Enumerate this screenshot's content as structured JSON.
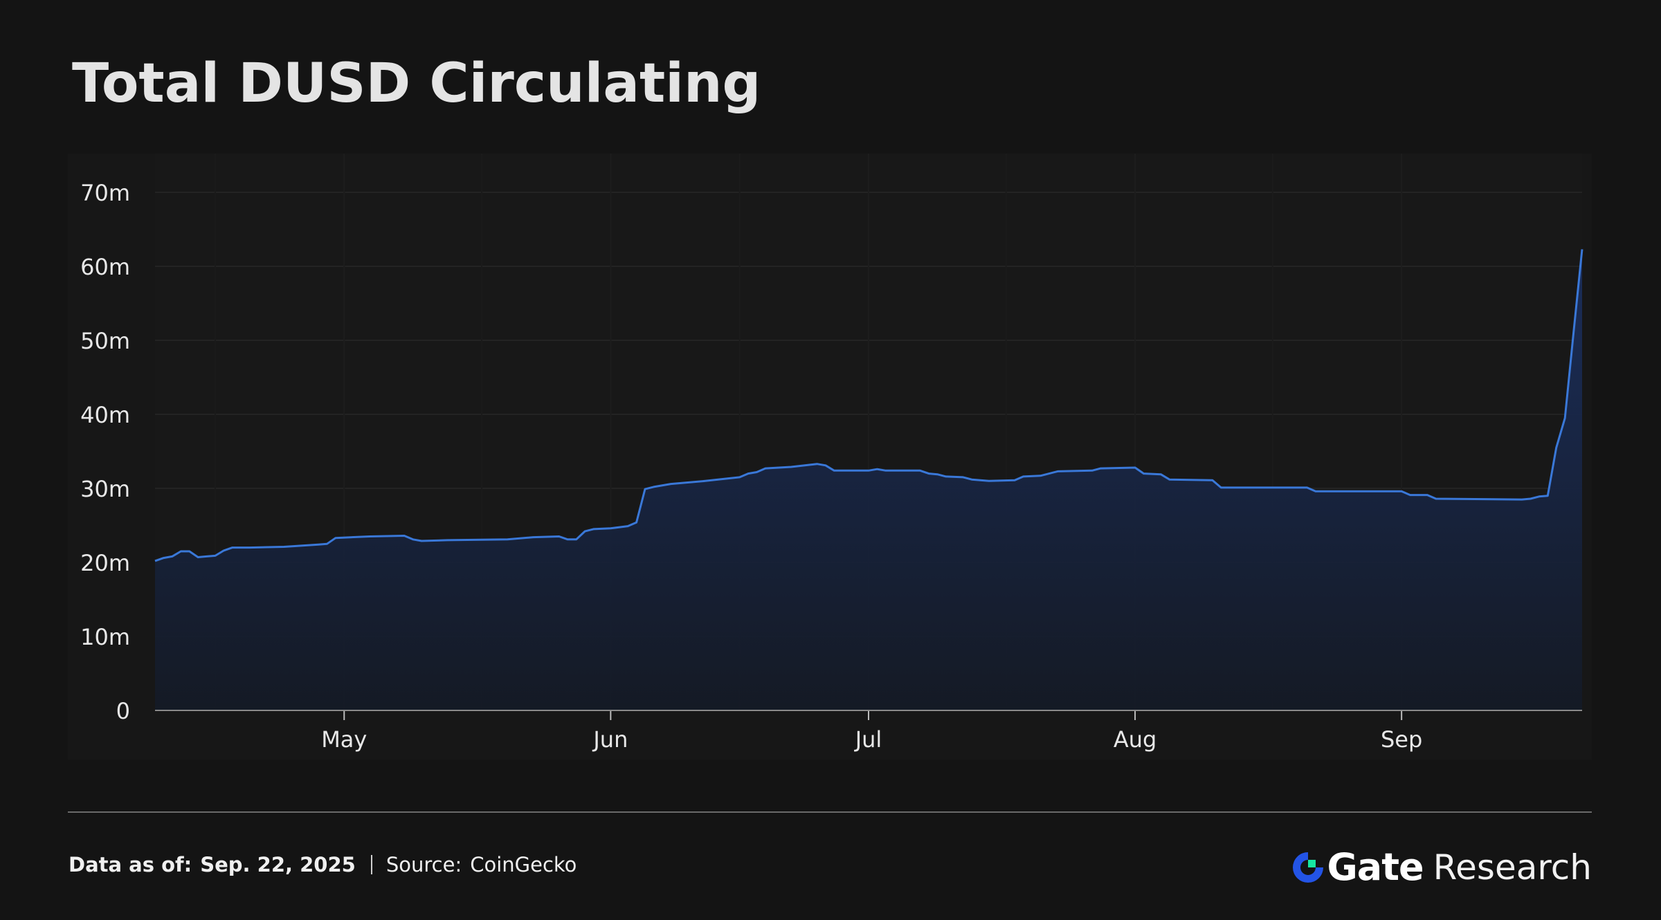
{
  "chart_data": {
    "type": "area",
    "title": "Total DUSD Circulating",
    "xlabel": "",
    "ylabel": "",
    "ylim": [
      0,
      70000000
    ],
    "yticks": [
      {
        "value": 0,
        "label": "0"
      },
      {
        "value": 10000000,
        "label": "10m"
      },
      {
        "value": 20000000,
        "label": "20m"
      },
      {
        "value": 30000000,
        "label": "30m"
      },
      {
        "value": 40000000,
        "label": "40m"
      },
      {
        "value": 50000000,
        "label": "50m"
      },
      {
        "value": 60000000,
        "label": "60m"
      },
      {
        "value": 70000000,
        "label": "70m"
      }
    ],
    "xlim": [
      "2025-04-09",
      "2025-09-22"
    ],
    "xticks": [
      {
        "date": "2025-05-01",
        "label": "May"
      },
      {
        "date": "2025-06-01",
        "label": "Jun"
      },
      {
        "date": "2025-07-01",
        "label": "Jul"
      },
      {
        "date": "2025-08-01",
        "label": "Aug"
      },
      {
        "date": "2025-09-01",
        "label": "Sep"
      }
    ],
    "grid": true,
    "series": [
      {
        "color": "#3a78d8",
        "points": [
          [
            "2025-04-09",
            20.2
          ],
          [
            "2025-04-10",
            20.6
          ],
          [
            "2025-04-11",
            20.8
          ],
          [
            "2025-04-12",
            21.5
          ],
          [
            "2025-04-13",
            21.5
          ],
          [
            "2025-04-14",
            20.7
          ],
          [
            "2025-04-15",
            20.8
          ],
          [
            "2025-04-16",
            20.9
          ],
          [
            "2025-04-17",
            21.6
          ],
          [
            "2025-04-18",
            22.0
          ],
          [
            "2025-04-20",
            22.0
          ],
          [
            "2025-04-24",
            22.1
          ],
          [
            "2025-04-28",
            22.4
          ],
          [
            "2025-04-29",
            22.5
          ],
          [
            "2025-04-30",
            23.3
          ],
          [
            "2025-05-04",
            23.5
          ],
          [
            "2025-05-08",
            23.6
          ],
          [
            "2025-05-09",
            23.1
          ],
          [
            "2025-05-10",
            22.9
          ],
          [
            "2025-05-13",
            23.0
          ],
          [
            "2025-05-20",
            23.1
          ],
          [
            "2025-05-23",
            23.4
          ],
          [
            "2025-05-26",
            23.5
          ],
          [
            "2025-05-27",
            23.1
          ],
          [
            "2025-05-28",
            23.1
          ],
          [
            "2025-05-29",
            24.2
          ],
          [
            "2025-05-30",
            24.5
          ],
          [
            "2025-06-01",
            24.6
          ],
          [
            "2025-06-03",
            24.9
          ],
          [
            "2025-06-04",
            25.4
          ],
          [
            "2025-06-05",
            29.9
          ],
          [
            "2025-06-06",
            30.2
          ],
          [
            "2025-06-08",
            30.6
          ],
          [
            "2025-06-12",
            31.0
          ],
          [
            "2025-06-16",
            31.5
          ],
          [
            "2025-06-17",
            32.0
          ],
          [
            "2025-06-18",
            32.2
          ],
          [
            "2025-06-19",
            32.7
          ],
          [
            "2025-06-22",
            32.9
          ],
          [
            "2025-06-25",
            33.3
          ],
          [
            "2025-06-26",
            33.1
          ],
          [
            "2025-06-27",
            32.4
          ],
          [
            "2025-07-01",
            32.4
          ],
          [
            "2025-07-02",
            32.6
          ],
          [
            "2025-07-03",
            32.4
          ],
          [
            "2025-07-07",
            32.4
          ],
          [
            "2025-07-08",
            32.0
          ],
          [
            "2025-07-09",
            31.9
          ],
          [
            "2025-07-10",
            31.6
          ],
          [
            "2025-07-12",
            31.5
          ],
          [
            "2025-07-13",
            31.2
          ],
          [
            "2025-07-15",
            31.0
          ],
          [
            "2025-07-18",
            31.1
          ],
          [
            "2025-07-19",
            31.6
          ],
          [
            "2025-07-21",
            31.7
          ],
          [
            "2025-07-23",
            32.3
          ],
          [
            "2025-07-27",
            32.4
          ],
          [
            "2025-07-28",
            32.7
          ],
          [
            "2025-08-01",
            32.8
          ],
          [
            "2025-08-02",
            32.0
          ],
          [
            "2025-08-04",
            31.9
          ],
          [
            "2025-08-05",
            31.2
          ],
          [
            "2025-08-10",
            31.1
          ],
          [
            "2025-08-11",
            30.1
          ],
          [
            "2025-08-21",
            30.1
          ],
          [
            "2025-08-22",
            29.6
          ],
          [
            "2025-09-01",
            29.6
          ],
          [
            "2025-09-02",
            29.1
          ],
          [
            "2025-09-04",
            29.1
          ],
          [
            "2025-09-05",
            28.6
          ],
          [
            "2025-09-15",
            28.5
          ],
          [
            "2025-09-16",
            28.6
          ],
          [
            "2025-09-17",
            28.9
          ],
          [
            "2025-09-18",
            29.0
          ],
          [
            "2025-09-19",
            35.5
          ],
          [
            "2025-09-20",
            39.5
          ],
          [
            "2025-09-21",
            51.0
          ],
          [
            "2025-09-22",
            62.3
          ]
        ],
        "unit_multiplier": 1000000
      }
    ]
  },
  "footer": {
    "data_as_of_label": "Data as of:",
    "data_as_of_value": "Sep. 22, 2025",
    "source_label": "Source:",
    "source_value": "CoinGecko"
  },
  "brand": {
    "name": "Gate",
    "sub": "Research",
    "mark_color": "#2354e6",
    "mark_accent": "#17e6a1"
  }
}
